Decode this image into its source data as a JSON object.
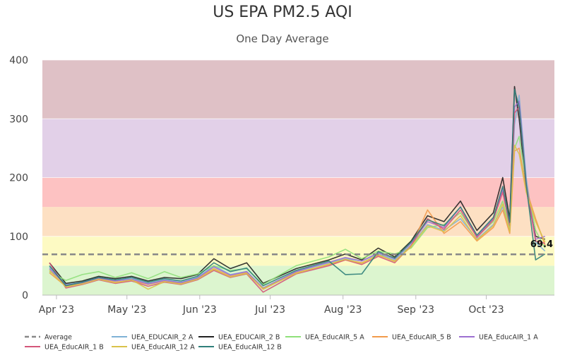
{
  "chart_data": {
    "type": "line",
    "title": "US EPA PM2.5 AQI",
    "subtitle": "One Day Average",
    "xlabel": "",
    "ylabel": "",
    "ylim": [
      0,
      400
    ],
    "yticks": [
      "0",
      "100",
      "200",
      "300",
      "400"
    ],
    "xlim": [
      "2023-03-26",
      "2023-10-30"
    ],
    "xticks": [
      {
        "date": "2023-04-01",
        "label": "Apr '23"
      },
      {
        "date": "2023-05-01",
        "label": "May '23"
      },
      {
        "date": "2023-06-01",
        "label": "Jun '23"
      },
      {
        "date": "2023-07-01",
        "label": "Jul '23"
      },
      {
        "date": "2023-08-01",
        "label": "Aug '23"
      },
      {
        "date": "2023-09-01",
        "label": "Sep '23"
      },
      {
        "date": "2023-10-01",
        "label": "Oct '23"
      }
    ],
    "grid": "horizontal",
    "legend_position": "bottom",
    "aqi_bands": [
      {
        "from": 0,
        "to": 50,
        "color": "#dcf5cf"
      },
      {
        "from": 50,
        "to": 100,
        "color": "#fdfac3"
      },
      {
        "from": 100,
        "to": 150,
        "color": "#fde0c3"
      },
      {
        "from": 150,
        "to": 200,
        "color": "#fdc2c2"
      },
      {
        "from": 200,
        "to": 300,
        "color": "#e2d0e8"
      },
      {
        "from": 300,
        "to": 400,
        "color": "#dfc1c6"
      }
    ],
    "average": {
      "name": "Average",
      "value": 69.4,
      "label": "69.4",
      "color": "#888888"
    },
    "series": [
      {
        "name": "UEA_EDUCAIR_2 A",
        "color": "#7fb2d6",
        "x": [
          "2023-03-29",
          "2023-04-05",
          "2023-04-12",
          "2023-04-19",
          "2023-04-26",
          "2023-05-03",
          "2023-05-10",
          "2023-05-17",
          "2023-05-24",
          "2023-05-31",
          "2023-06-07",
          "2023-06-14",
          "2023-06-21",
          "2023-06-28",
          "2023-07-12",
          "2023-07-26",
          "2023-08-02",
          "2023-08-09",
          "2023-08-16",
          "2023-08-23",
          "2023-08-30",
          "2023-09-06",
          "2023-09-13",
          "2023-09-20",
          "2023-09-27",
          "2023-10-04",
          "2023-10-08",
          "2023-10-11",
          "2023-10-13",
          "2023-10-15",
          "2023-10-18",
          "2023-10-22",
          "2023-10-26"
        ],
        "y": [
          48,
          18,
          22,
          30,
          25,
          28,
          20,
          26,
          22,
          30,
          50,
          35,
          40,
          12,
          40,
          55,
          62,
          58,
          70,
          60,
          85,
          120,
          110,
          130,
          95,
          120,
          150,
          110,
          290,
          340,
          200,
          90,
          75
        ]
      },
      {
        "name": "UEA_EDUCAIR_2 B",
        "color": "#222222",
        "x": [
          "2023-03-29",
          "2023-04-05",
          "2023-04-12",
          "2023-04-19",
          "2023-04-26",
          "2023-05-03",
          "2023-05-10",
          "2023-05-17",
          "2023-05-24",
          "2023-05-31",
          "2023-06-07",
          "2023-06-14",
          "2023-06-21",
          "2023-06-28",
          "2023-07-12",
          "2023-07-26",
          "2023-08-02",
          "2023-08-09",
          "2023-08-16",
          "2023-08-23",
          "2023-08-30",
          "2023-09-06",
          "2023-09-13",
          "2023-09-20",
          "2023-09-27",
          "2023-10-04",
          "2023-10-08",
          "2023-10-11",
          "2023-10-13",
          "2023-10-15",
          "2023-10-18",
          "2023-10-22",
          "2023-10-26"
        ],
        "y": [
          55,
          20,
          24,
          32,
          28,
          32,
          24,
          30,
          28,
          35,
          62,
          45,
          55,
          20,
          45,
          60,
          70,
          60,
          80,
          65,
          92,
          135,
          125,
          160,
          110,
          140,
          200,
          130,
          355,
          300,
          180,
          100,
          95
        ]
      },
      {
        "name": "UEA_EducAIR_5 A",
        "color": "#8fe07a",
        "x": [
          "2023-03-29",
          "2023-04-05",
          "2023-04-12",
          "2023-04-19",
          "2023-04-26",
          "2023-05-03",
          "2023-05-10",
          "2023-05-17",
          "2023-05-24",
          "2023-05-31",
          "2023-06-07",
          "2023-06-14",
          "2023-06-21",
          "2023-06-28",
          "2023-07-12",
          "2023-07-26",
          "2023-08-02",
          "2023-08-09",
          "2023-08-16",
          "2023-08-23",
          "2023-08-30",
          "2023-09-06",
          "2023-09-13",
          "2023-09-20",
          "2023-09-27",
          "2023-10-04",
          "2023-10-08",
          "2023-10-11",
          "2023-10-13",
          "2023-10-15",
          "2023-10-18",
          "2023-10-22",
          "2023-10-26"
        ],
        "y": [
          40,
          25,
          35,
          40,
          30,
          38,
          28,
          40,
          30,
          36,
          50,
          42,
          45,
          18,
          50,
          65,
          78,
          62,
          75,
          70,
          80,
          115,
          120,
          140,
          100,
          125,
          160,
          115,
          250,
          270,
          190,
          110,
          80
        ]
      },
      {
        "name": "UEA_EducAIR_5 B",
        "color": "#f29a4b",
        "x": [
          "2023-03-29",
          "2023-04-05",
          "2023-04-12",
          "2023-04-19",
          "2023-04-26",
          "2023-05-03",
          "2023-05-10",
          "2023-05-17",
          "2023-05-24",
          "2023-05-31",
          "2023-06-07",
          "2023-06-14",
          "2023-06-21",
          "2023-06-28",
          "2023-07-12",
          "2023-07-26",
          "2023-08-02",
          "2023-08-09",
          "2023-08-16",
          "2023-08-23",
          "2023-08-30",
          "2023-09-06",
          "2023-09-13",
          "2023-09-20",
          "2023-09-27",
          "2023-10-04",
          "2023-10-08",
          "2023-10-11",
          "2023-10-13",
          "2023-10-15",
          "2023-10-18",
          "2023-10-22",
          "2023-10-26"
        ],
        "y": [
          38,
          15,
          20,
          28,
          22,
          25,
          18,
          24,
          20,
          28,
          45,
          32,
          38,
          10,
          38,
          52,
          60,
          55,
          68,
          58,
          82,
          145,
          105,
          125,
          92,
          115,
          145,
          105,
          245,
          250,
          180,
          130,
          85
        ]
      },
      {
        "name": "UEA_EducAIR_1 A",
        "color": "#9d6fd1",
        "x": [
          "2023-03-29",
          "2023-04-05",
          "2023-04-12",
          "2023-04-19",
          "2023-04-26",
          "2023-05-03",
          "2023-05-10",
          "2023-05-17",
          "2023-05-24",
          "2023-05-31",
          "2023-06-07",
          "2023-06-14",
          "2023-06-21",
          "2023-06-28",
          "2023-07-12",
          "2023-07-26",
          "2023-08-02",
          "2023-08-09",
          "2023-08-16",
          "2023-08-23",
          "2023-08-30",
          "2023-09-06",
          "2023-09-13",
          "2023-09-20",
          "2023-09-27",
          "2023-10-04",
          "2023-10-08",
          "2023-10-11",
          "2023-10-13",
          "2023-10-15",
          "2023-10-18",
          "2023-10-22",
          "2023-10-26"
        ],
        "y": [
          45,
          17,
          21,
          29,
          24,
          27,
          19,
          25,
          21,
          29,
          48,
          34,
          40,
          12,
          40,
          56,
          64,
          58,
          72,
          62,
          88,
          125,
          115,
          150,
          100,
          130,
          180,
          120,
          320,
          330,
          190,
          95,
          100
        ]
      },
      {
        "name": "UEA_EducAIR_1 B",
        "color": "#d4567a",
        "x": [
          "2023-03-29",
          "2023-04-05",
          "2023-04-12",
          "2023-04-19",
          "2023-04-26",
          "2023-05-03",
          "2023-05-10",
          "2023-05-17",
          "2023-05-24",
          "2023-05-31",
          "2023-06-07",
          "2023-06-14",
          "2023-06-21",
          "2023-06-28",
          "2023-07-12",
          "2023-07-26",
          "2023-08-02",
          "2023-08-09",
          "2023-08-16",
          "2023-08-23",
          "2023-08-30",
          "2023-09-06",
          "2023-09-13",
          "2023-09-20",
          "2023-09-27",
          "2023-10-04",
          "2023-10-08",
          "2023-10-11",
          "2023-10-13",
          "2023-10-15",
          "2023-10-18",
          "2023-10-22",
          "2023-10-26"
        ],
        "y": [
          55,
          12,
          18,
          26,
          20,
          24,
          15,
          22,
          18,
          26,
          42,
          30,
          36,
          5,
          36,
          50,
          60,
          52,
          66,
          55,
          84,
          130,
          112,
          145,
          98,
          128,
          175,
          118,
          310,
          320,
          185,
          92,
          88
        ]
      },
      {
        "name": "UEA_EducAIR_12 A",
        "color": "#d9c24a",
        "x": [
          "2023-03-29",
          "2023-04-05",
          "2023-04-12",
          "2023-04-19",
          "2023-04-26",
          "2023-05-03",
          "2023-05-10",
          "2023-05-17",
          "2023-05-24",
          "2023-05-31",
          "2023-06-07",
          "2023-06-14",
          "2023-06-21",
          "2023-06-28",
          "2023-07-12",
          "2023-07-26",
          "2023-08-02",
          "2023-08-09",
          "2023-08-16",
          "2023-08-23",
          "2023-08-30",
          "2023-09-06",
          "2023-09-13",
          "2023-09-20",
          "2023-09-27",
          "2023-10-04",
          "2023-10-08",
          "2023-10-11",
          "2023-10-13",
          "2023-10-15",
          "2023-10-18",
          "2023-10-22",
          "2023-10-26"
        ],
        "y": [
          42,
          14,
          19,
          27,
          21,
          26,
          10,
          23,
          19,
          27,
          44,
          31,
          37,
          11,
          37,
          53,
          61,
          54,
          69,
          57,
          83,
          118,
          108,
          135,
          94,
          118,
          155,
          108,
          255,
          240,
          175,
          125,
          90
        ]
      },
      {
        "name": "UEA_EducAIR_12 B",
        "color": "#2f7f7a",
        "x": [
          "2023-03-29",
          "2023-04-05",
          "2023-04-12",
          "2023-04-19",
          "2023-04-26",
          "2023-05-03",
          "2023-05-10",
          "2023-05-17",
          "2023-05-24",
          "2023-05-31",
          "2023-06-07",
          "2023-06-14",
          "2023-06-21",
          "2023-06-28",
          "2023-07-12",
          "2023-07-26",
          "2023-08-02",
          "2023-08-09",
          "2023-08-16",
          "2023-08-23",
          "2023-08-30",
          "2023-09-06",
          "2023-09-13",
          "2023-09-20",
          "2023-09-27",
          "2023-10-04",
          "2023-10-08",
          "2023-10-11",
          "2023-10-13",
          "2023-10-15",
          "2023-10-18",
          "2023-10-22",
          "2023-10-26"
        ],
        "y": [
          50,
          16,
          22,
          30,
          26,
          30,
          22,
          28,
          24,
          32,
          55,
          40,
          46,
          16,
          42,
          58,
          35,
          36,
          74,
          63,
          90,
          128,
          118,
          150,
          102,
          132,
          185,
          124,
          350,
          320,
          188,
          60,
          70
        ]
      }
    ],
    "legend": [
      {
        "name": "Average",
        "dashed": true
      },
      {
        "name": "UEA_EDUCAIR_2 A"
      },
      {
        "name": "UEA_EDUCAIR_2 B"
      },
      {
        "name": "UEA_EducAIR_5 A"
      },
      {
        "name": "UEA_EducAIR_5 B"
      },
      {
        "name": "UEA_EducAIR_1 A"
      },
      {
        "name": "UEA_EducAIR_1 B"
      },
      {
        "name": "UEA_EducAIR_12 A"
      },
      {
        "name": "UEA_EducAIR_12 B"
      }
    ]
  }
}
